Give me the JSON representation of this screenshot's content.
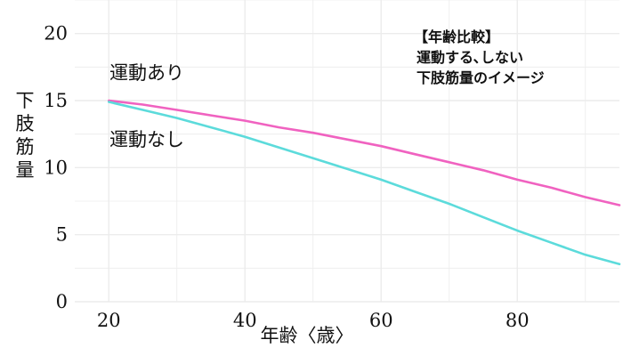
{
  "chart_data": {
    "type": "line",
    "xlabel": "年齢〈歳〉",
    "ylabel": "下肢筋量",
    "xlim": [
      15,
      95
    ],
    "ylim": [
      0,
      22.5
    ],
    "x_ticks": [
      20,
      40,
      60,
      80
    ],
    "y_ticks": [
      0,
      5,
      10,
      15,
      20
    ],
    "grid": true,
    "annotation": [
      "【年齢比較】",
      "運動する､しない",
      "下肢筋量のイメージ"
    ],
    "series": [
      {
        "name": "運動あり",
        "color": "#f062c0",
        "x": [
          20,
          25,
          30,
          35,
          40,
          45,
          50,
          55,
          60,
          65,
          70,
          75,
          80,
          85,
          90,
          95
        ],
        "y": [
          15.0,
          14.7,
          14.3,
          13.9,
          13.5,
          13.0,
          12.6,
          12.1,
          11.6,
          11.0,
          10.4,
          9.8,
          9.1,
          8.5,
          7.8,
          7.2
        ]
      },
      {
        "name": "運動なし",
        "color": "#5cdbdb",
        "x": [
          20,
          25,
          30,
          35,
          40,
          45,
          50,
          55,
          60,
          65,
          70,
          75,
          80,
          85,
          90,
          95
        ],
        "y": [
          14.9,
          14.3,
          13.7,
          13.0,
          12.3,
          11.5,
          10.7,
          9.9,
          9.1,
          8.2,
          7.3,
          6.3,
          5.3,
          4.4,
          3.5,
          2.8
        ]
      }
    ]
  }
}
